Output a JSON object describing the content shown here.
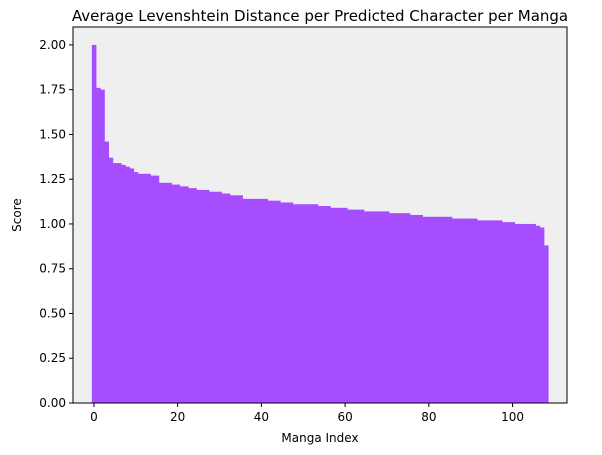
{
  "chart_data": {
    "type": "bar",
    "title": "Average Levenshtein Distance per Predicted Character per Manga",
    "xlabel": "Manga Index",
    "ylabel": "Score",
    "xlim": [
      -5,
      113
    ],
    "ylim": [
      0,
      2.1
    ],
    "xticks": [
      0,
      20,
      40,
      60,
      80,
      100
    ],
    "xtick_labels": [
      "0",
      "20",
      "40",
      "60",
      "80",
      "100"
    ],
    "yticks": [
      0,
      0.25,
      0.5,
      0.75,
      1.0,
      1.25,
      1.5,
      1.75,
      2.0
    ],
    "ytick_labels": [
      "0.00",
      "0.25",
      "0.50",
      "0.75",
      "1.00",
      "1.25",
      "1.50",
      "1.75",
      "2.00"
    ],
    "grid": false,
    "background_color": "#efefef",
    "bar_color": "#a64dff",
    "x": [
      0,
      1,
      2,
      3,
      4,
      5,
      6,
      7,
      8,
      9,
      10,
      11,
      12,
      13,
      14,
      15,
      16,
      17,
      18,
      19,
      20,
      21,
      22,
      23,
      24,
      25,
      26,
      27,
      28,
      29,
      30,
      31,
      32,
      33,
      34,
      35,
      36,
      37,
      38,
      39,
      40,
      41,
      42,
      43,
      44,
      45,
      46,
      47,
      48,
      49,
      50,
      51,
      52,
      53,
      54,
      55,
      56,
      57,
      58,
      59,
      60,
      61,
      62,
      63,
      64,
      65,
      66,
      67,
      68,
      69,
      70,
      71,
      72,
      73,
      74,
      75,
      76,
      77,
      78,
      79,
      80,
      81,
      82,
      83,
      84,
      85,
      86,
      87,
      88,
      89,
      90,
      91,
      92,
      93,
      94,
      95,
      96,
      97,
      98,
      99,
      100,
      101,
      102,
      103,
      104,
      105,
      106,
      107,
      108
    ],
    "values": [
      2.0,
      1.76,
      1.75,
      1.46,
      1.37,
      1.34,
      1.34,
      1.33,
      1.32,
      1.31,
      1.29,
      1.28,
      1.28,
      1.28,
      1.27,
      1.27,
      1.23,
      1.23,
      1.23,
      1.22,
      1.22,
      1.21,
      1.21,
      1.2,
      1.2,
      1.19,
      1.19,
      1.19,
      1.18,
      1.18,
      1.18,
      1.17,
      1.17,
      1.16,
      1.16,
      1.16,
      1.14,
      1.14,
      1.14,
      1.14,
      1.14,
      1.14,
      1.13,
      1.13,
      1.13,
      1.12,
      1.12,
      1.12,
      1.11,
      1.11,
      1.11,
      1.11,
      1.11,
      1.11,
      1.1,
      1.1,
      1.1,
      1.09,
      1.09,
      1.09,
      1.09,
      1.08,
      1.08,
      1.08,
      1.08,
      1.07,
      1.07,
      1.07,
      1.07,
      1.07,
      1.07,
      1.06,
      1.06,
      1.06,
      1.06,
      1.06,
      1.05,
      1.05,
      1.05,
      1.04,
      1.04,
      1.04,
      1.04,
      1.04,
      1.04,
      1.04,
      1.03,
      1.03,
      1.03,
      1.03,
      1.03,
      1.03,
      1.02,
      1.02,
      1.02,
      1.02,
      1.02,
      1.02,
      1.01,
      1.01,
      1.01,
      1.0,
      1.0,
      1.0,
      1.0,
      1.0,
      0.99,
      0.98,
      0.88
    ]
  }
}
